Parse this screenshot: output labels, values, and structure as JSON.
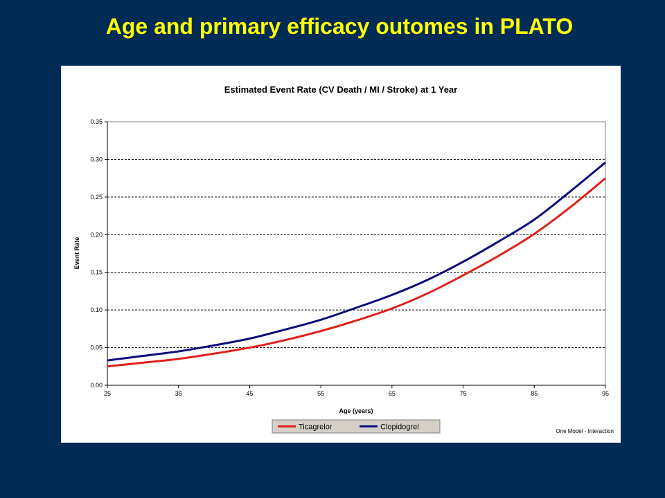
{
  "slide": {
    "title": "Age and primary efficacy outomes in PLATO"
  },
  "chart_data": {
    "type": "line",
    "title": "Estimated Event Rate (CV Death / MI / Stroke) at 1 Year",
    "xlabel": "Age (years)",
    "ylabel": "Event Rate",
    "xlim": [
      25,
      95
    ],
    "ylim": [
      0,
      0.35
    ],
    "x_ticks": [
      25,
      35,
      45,
      55,
      65,
      75,
      85,
      95
    ],
    "y_ticks": [
      "0.00",
      "0.05",
      "0.10",
      "0.15",
      "0.20",
      "0.25",
      "0.30",
      "0.35"
    ],
    "grid": "horizontal dashed",
    "legend_position": "bottom",
    "series": [
      {
        "name": "Ticagrelor",
        "color": "#e0201b",
        "x": [
          25,
          30,
          35,
          40,
          45,
          50,
          55,
          60,
          65,
          70,
          75,
          80,
          85,
          90,
          95
        ],
        "y": [
          0.025,
          0.03,
          0.035,
          0.042,
          0.05,
          0.06,
          0.072,
          0.086,
          0.102,
          0.122,
          0.146,
          0.172,
          0.201,
          0.236,
          0.275
        ]
      },
      {
        "name": "Clopidogrel",
        "color": "#0b0b7a",
        "x": [
          25,
          30,
          35,
          40,
          45,
          50,
          55,
          60,
          65,
          70,
          75,
          80,
          85,
          90,
          95
        ],
        "y": [
          0.033,
          0.039,
          0.045,
          0.053,
          0.062,
          0.074,
          0.087,
          0.103,
          0.12,
          0.14,
          0.164,
          0.191,
          0.22,
          0.257,
          0.296
        ]
      }
    ],
    "note": "One Model -  Interaction"
  }
}
